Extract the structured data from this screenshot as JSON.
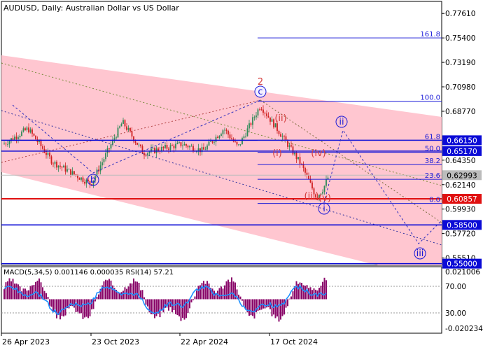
{
  "header": {
    "symbol_title": "AUDUSD, Daily:  Australian Dollar vs US Dollar"
  },
  "macd_label": "MACD(5,34,5) 0.001146 0.000035 RSI(14) 57.21",
  "chart_data": [
    {
      "type": "candlestick",
      "title": "AUDUSD, Daily:  Australian Dollar vs US Dollar",
      "ylim": [
        0.5485,
        0.787
      ],
      "y_ticks": [
        {
          "v": 0.7761,
          "label": "0.77610"
        },
        {
          "v": 0.754,
          "label": "0.75400"
        },
        {
          "v": 0.7319,
          "label": "0.73190"
        },
        {
          "v": 0.7098,
          "label": "0.70980"
        },
        {
          "v": 0.6877,
          "label": "0.68770"
        },
        {
          "v": 0.6435,
          "label": "0.64350"
        },
        {
          "v": 0.6214,
          "label": "0.62140"
        },
        {
          "v": 0.5993,
          "label": "0.59930"
        },
        {
          "v": 0.5772,
          "label": "0.57720"
        },
        {
          "v": 0.5551,
          "label": "0.55510"
        }
      ],
      "x_ticks": [
        "26 Apr 2023",
        "23 Oct 2023",
        "22 Apr 2024",
        "17 Oct 2024"
      ],
      "price_levels": [
        {
          "value": 0.6615,
          "label": "0.66150",
          "color": "#0b0bd6"
        },
        {
          "value": 0.6517,
          "label": "0.65170",
          "color": "#0b0bd6"
        },
        {
          "value": 0.62993,
          "label": "0.62993",
          "color": "#bcbcbc"
        },
        {
          "value": 0.60857,
          "label": "0.60857",
          "color": "#e01010"
        },
        {
          "value": 0.585,
          "label": "0.58500",
          "color": "#0b0bd6"
        },
        {
          "value": 0.55,
          "label": "0.55000",
          "color": "#0b0bd6"
        }
      ],
      "fibonacci": [
        {
          "label": "161.8",
          "value": 0.754
        },
        {
          "label": "100.0",
          "value": 0.6967
        },
        {
          "label": "61.8",
          "value": 0.6614
        },
        {
          "label": "50.0",
          "value": 0.6506
        },
        {
          "label": "38.2",
          "value": 0.6397
        },
        {
          "label": "23.6",
          "value": 0.6262
        },
        {
          "label": "0.0",
          "value": 0.6044
        }
      ],
      "wave_labels": [
        {
          "text": "2",
          "color": "#d43b3b"
        },
        {
          "text": "c",
          "color": "#1a1ad8"
        },
        {
          "text": "b",
          "color": "#1a1ad8"
        },
        {
          "text": "(ii)",
          "color": "#d43b3b"
        },
        {
          "text": "(i)",
          "color": "#d43b3b"
        },
        {
          "text": "(iv)",
          "color": "#d43b3b"
        },
        {
          "text": "(iii)",
          "color": "#d43b3b"
        },
        {
          "text": "(v)",
          "color": "#d43b3b"
        },
        {
          "text": "i",
          "color": "#1a1ad8"
        },
        {
          "text": "ii",
          "color": "#1a1ad8"
        },
        {
          "text": "iii",
          "color": "#1a1ad8"
        }
      ],
      "up_color": "#2e8b57",
      "down_color": "#d02020",
      "channel_color": "#ffc0cb"
    },
    {
      "type": "histogram",
      "title": "MACD(5,34,5) 0.001146 0.000035 RSI(14) 57.21",
      "ylim": [
        -0.0235,
        0.0225
      ],
      "y_ticks": [
        {
          "label": "0.021006"
        },
        {
          "label": "70.00"
        },
        {
          "label": "30.00"
        },
        {
          "label": "-0.020234"
        }
      ],
      "hist_color": "#8b0a6b",
      "rsi_color": "#1e90ff"
    }
  ]
}
